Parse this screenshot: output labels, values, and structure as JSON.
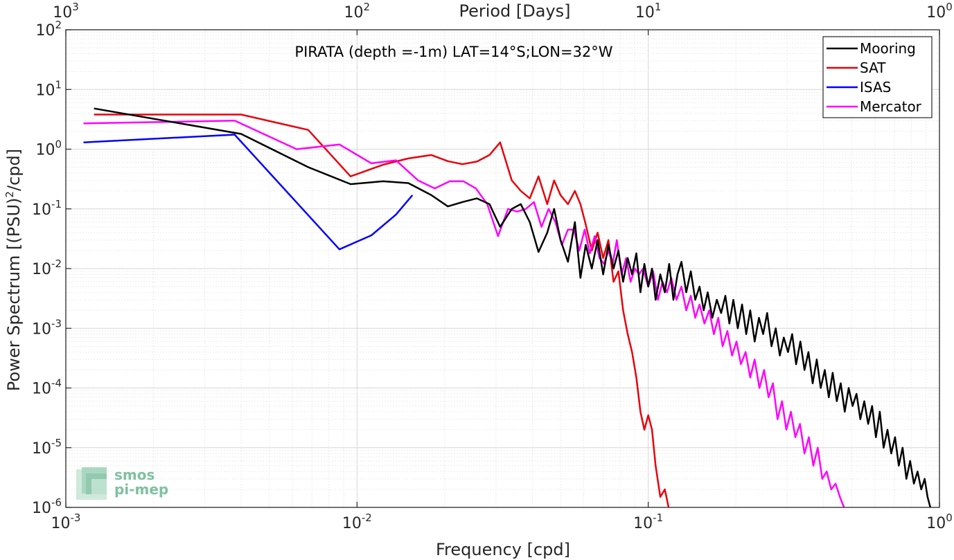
{
  "chart_data": {
    "type": "line",
    "title": "PIRATA (depth =-1m) LAT=14°S;LON=32°W",
    "xlabel": "Frequency [cpd]",
    "ylabel_parts": [
      "Power Spectrum [(PSU)",
      "2",
      "/cpd]"
    ],
    "top_xlabel": "Period [Days]",
    "xscale": "log",
    "yscale": "log",
    "xlim": [
      0.001,
      1
    ],
    "ylim": [
      1e-06,
      100
    ],
    "grid": true,
    "legend_position": "top-right",
    "x_ticks": [
      {
        "value": 0.001,
        "base": "10",
        "exp": "-3"
      },
      {
        "value": 0.01,
        "base": "10",
        "exp": "-2"
      },
      {
        "value": 0.1,
        "base": "10",
        "exp": "-1"
      },
      {
        "value": 1,
        "base": "10",
        "exp": "0"
      }
    ],
    "y_ticks": [
      {
        "value": 1e-06,
        "base": "10",
        "exp": "-6"
      },
      {
        "value": 1e-05,
        "base": "10",
        "exp": "-5"
      },
      {
        "value": 0.0001,
        "base": "10",
        "exp": "-4"
      },
      {
        "value": 0.001,
        "base": "10",
        "exp": "-3"
      },
      {
        "value": 0.01,
        "base": "10",
        "exp": "-2"
      },
      {
        "value": 0.1,
        "base": "10",
        "exp": "-1"
      },
      {
        "value": 1,
        "base": "10",
        "exp": "0"
      },
      {
        "value": 10,
        "base": "10",
        "exp": "1"
      },
      {
        "value": 100,
        "base": "10",
        "exp": "2"
      }
    ],
    "top_ticks": [
      {
        "value": 0.001,
        "base": "10",
        "exp": "3"
      },
      {
        "value": 0.01,
        "base": "10",
        "exp": "2"
      },
      {
        "value": 0.1,
        "base": "10",
        "exp": "1"
      },
      {
        "value": 1,
        "base": "10",
        "exp": "0"
      }
    ],
    "series": [
      {
        "name": "Mooring",
        "color": "#000000",
        "x": [
          0.00125,
          0.004,
          0.0068,
          0.0095,
          0.0123,
          0.015,
          0.018,
          0.0205,
          0.023,
          0.0258,
          0.0285,
          0.031,
          0.034,
          0.0365,
          0.0392,
          0.042,
          0.045,
          0.0475,
          0.05,
          0.053,
          0.056,
          0.0585,
          0.061,
          0.064,
          0.067,
          0.07,
          0.073,
          0.076,
          0.079,
          0.082,
          0.085,
          0.088,
          0.091,
          0.094,
          0.097,
          0.1,
          0.103,
          0.106,
          0.11,
          0.114,
          0.118,
          0.122,
          0.126,
          0.13,
          0.135,
          0.14,
          0.145,
          0.15,
          0.155,
          0.16,
          0.166,
          0.172,
          0.178,
          0.184,
          0.19,
          0.196,
          0.203,
          0.21,
          0.217,
          0.224,
          0.232,
          0.24,
          0.248,
          0.256,
          0.265,
          0.274,
          0.283,
          0.292,
          0.302,
          0.312,
          0.322,
          0.333,
          0.344,
          0.355,
          0.367,
          0.379,
          0.391,
          0.404,
          0.417,
          0.43,
          0.444,
          0.458,
          0.473,
          0.488,
          0.503,
          0.519,
          0.535,
          0.552,
          0.569,
          0.587,
          0.605,
          0.624,
          0.643,
          0.663,
          0.683,
          0.704,
          0.725,
          0.747,
          0.77,
          0.793,
          0.817,
          0.841,
          0.866,
          0.89,
          0.91,
          0.93
        ],
        "y": [
          4.8,
          1.8,
          0.5,
          0.26,
          0.29,
          0.27,
          0.17,
          0.11,
          0.13,
          0.15,
          0.12,
          0.05,
          0.1,
          0.12,
          0.06,
          0.019,
          0.04,
          0.1,
          0.03,
          0.013,
          0.06,
          0.007,
          0.025,
          0.01,
          0.03,
          0.008,
          0.025,
          0.01,
          0.02,
          0.006,
          0.015,
          0.008,
          0.018,
          0.004,
          0.012,
          0.005,
          0.01,
          0.003,
          0.008,
          0.004,
          0.012,
          0.003,
          0.008,
          0.013,
          0.004,
          0.009,
          0.003,
          0.005,
          0.002,
          0.004,
          0.0015,
          0.003,
          0.0018,
          0.0035,
          0.0012,
          0.003,
          0.001,
          0.0025,
          0.0008,
          0.002,
          0.0006,
          0.0015,
          0.0008,
          0.0018,
          0.0005,
          0.001,
          0.00035,
          0.0007,
          0.0004,
          0.0008,
          0.00025,
          0.0006,
          0.0002,
          0.0004,
          0.00012,
          0.0003,
          0.0001,
          0.0002,
          7e-05,
          0.00018,
          6e-05,
          0.00012,
          4e-05,
          0.0001,
          5e-05,
          8e-05,
          3e-05,
          6e-05,
          2.5e-05,
          5e-05,
          1.5e-05,
          4e-05,
          1e-05,
          2e-05,
          8e-06,
          1.5e-05,
          5e-06,
          1e-05,
          3e-06,
          6e-06,
          2.5e-06,
          4e-06,
          2e-06,
          3e-06,
          1.5e-06,
          1e-06
        ]
      },
      {
        "name": "SAT",
        "color": "#e8000b",
        "x": [
          0.00125,
          0.004,
          0.0068,
          0.0095,
          0.0123,
          0.015,
          0.018,
          0.0205,
          0.023,
          0.0258,
          0.0285,
          0.031,
          0.034,
          0.0365,
          0.0392,
          0.042,
          0.045,
          0.0475,
          0.05,
          0.053,
          0.056,
          0.0585,
          0.061,
          0.064,
          0.067,
          0.07,
          0.073,
          0.076,
          0.079,
          0.082,
          0.085,
          0.088,
          0.091,
          0.094,
          0.097,
          0.1,
          0.103,
          0.106,
          0.11,
          0.114,
          0.118
        ],
        "y": [
          3.8,
          3.8,
          2.1,
          0.35,
          0.55,
          0.7,
          0.8,
          0.63,
          0.56,
          0.62,
          0.8,
          1.3,
          0.3,
          0.2,
          0.15,
          0.35,
          0.12,
          0.3,
          0.17,
          0.12,
          0.2,
          0.12,
          0.055,
          0.02,
          0.04,
          0.015,
          0.03,
          0.006,
          0.009,
          0.002,
          0.0008,
          0.0004,
          0.00015,
          4e-05,
          2e-05,
          3.5e-05,
          2e-05,
          5e-06,
          1.5e-06,
          2e-06,
          9e-07
        ]
      },
      {
        "name": "ISAS",
        "color": "#0000ff",
        "x": [
          0.00115,
          0.0038,
          0.0087,
          0.0112,
          0.0136,
          0.0155
        ],
        "y": [
          1.3,
          1.75,
          0.021,
          0.036,
          0.08,
          0.17
        ]
      },
      {
        "name": "Mercator",
        "color": "#ff00ff",
        "x": [
          0.00115,
          0.0038,
          0.0062,
          0.0087,
          0.0112,
          0.0136,
          0.0162,
          0.0185,
          0.0208,
          0.0232,
          0.0256,
          0.028,
          0.0305,
          0.033,
          0.0355,
          0.038,
          0.0405,
          0.043,
          0.0455,
          0.048,
          0.0505,
          0.053,
          0.0555,
          0.058,
          0.0605,
          0.063,
          0.0655,
          0.068,
          0.0705,
          0.073,
          0.0755,
          0.078,
          0.081,
          0.084,
          0.087,
          0.09,
          0.093,
          0.096,
          0.1,
          0.104,
          0.108,
          0.112,
          0.116,
          0.12,
          0.125,
          0.13,
          0.135,
          0.14,
          0.145,
          0.15,
          0.156,
          0.162,
          0.168,
          0.174,
          0.18,
          0.187,
          0.194,
          0.201,
          0.208,
          0.216,
          0.224,
          0.232,
          0.241,
          0.25,
          0.259,
          0.268,
          0.278,
          0.288,
          0.298,
          0.309,
          0.32,
          0.332,
          0.344,
          0.356,
          0.369,
          0.382,
          0.396,
          0.41,
          0.425,
          0.44,
          0.455,
          0.47
        ],
        "y": [
          2.7,
          3.0,
          1.0,
          1.2,
          0.58,
          0.65,
          0.3,
          0.22,
          0.29,
          0.29,
          0.22,
          0.12,
          0.035,
          0.1,
          0.09,
          0.1,
          0.13,
          0.05,
          0.1,
          0.06,
          0.025,
          0.045,
          0.045,
          0.02,
          0.045,
          0.018,
          0.035,
          0.015,
          0.012,
          0.02,
          0.012,
          0.03,
          0.008,
          0.015,
          0.006,
          0.01,
          0.008,
          0.01,
          0.005,
          0.009,
          0.003,
          0.006,
          0.004,
          0.007,
          0.003,
          0.005,
          0.002,
          0.0035,
          0.0015,
          0.0025,
          0.0012,
          0.002,
          0.0008,
          0.0015,
          0.0005,
          0.0009,
          0.00035,
          0.0006,
          0.00025,
          0.0004,
          0.00015,
          0.0003,
          0.0001,
          0.0002,
          7e-05,
          0.00012,
          3e-05,
          6e-05,
          2e-05,
          4e-05,
          1.5e-05,
          2.5e-05,
          8e-06,
          1.5e-05,
          5e-06,
          1e-05,
          3e-06,
          4e-06,
          2e-06,
          2.5e-06,
          1.5e-06,
          1e-06
        ]
      }
    ]
  },
  "logo": {
    "line1": "smos",
    "line2": "pi-mep",
    "color": "#7fc1a0"
  }
}
